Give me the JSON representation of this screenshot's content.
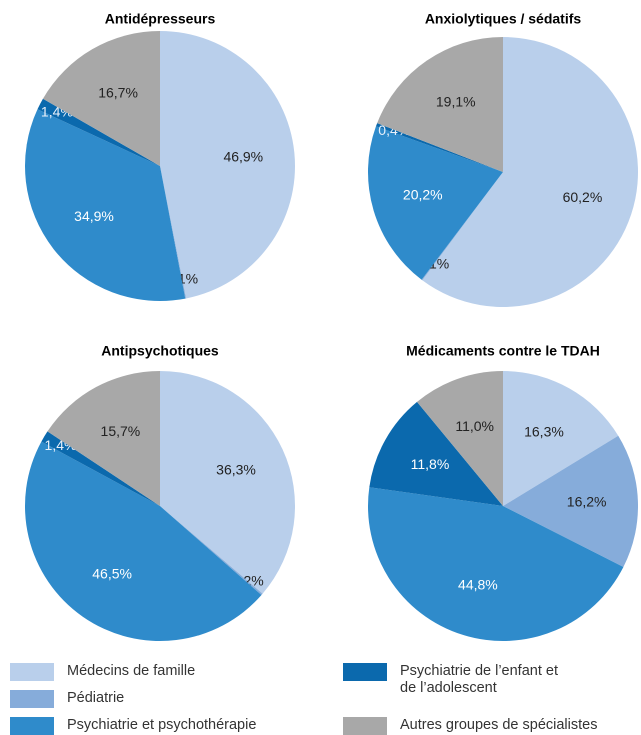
{
  "chart_data": [
    {
      "type": "pie",
      "title": "Antidépresseurs",
      "categories": [
        "Médecins de famille",
        "Pédiatrie",
        "Psychiatrie et psychothérapie",
        "Psychiatrie de l’enfant et de l’adolescent",
        "Autres groupes de spécialistes"
      ],
      "values": [
        46.9,
        0.1,
        34.9,
        1.4,
        16.7
      ],
      "value_labels": [
        "46,9%",
        "0,1%",
        "34,9%",
        "1,4%",
        "16,7%"
      ],
      "colors": [
        "#b9cfeb",
        "#86acda",
        "#2f8bcb",
        "#0b69ad",
        "#a8a8a8"
      ]
    },
    {
      "type": "pie",
      "title": "Anxiolytiques / sédatifs",
      "categories": [
        "Médecins de famille",
        "Pédiatrie",
        "Psychiatrie et psychothérapie",
        "Psychiatrie de l’enfant et de l’adolescent",
        "Autres groupes de spécialistes"
      ],
      "values": [
        60.2,
        0.1,
        20.2,
        0.4,
        19.1
      ],
      "value_labels": [
        "60,2%",
        "0,1%",
        "20,2%",
        "0,4%",
        "19,1%"
      ],
      "colors": [
        "#b9cfeb",
        "#86acda",
        "#2f8bcb",
        "#0b69ad",
        "#a8a8a8"
      ]
    },
    {
      "type": "pie",
      "title": "Antipsychotiques",
      "categories": [
        "Médecins de famille",
        "Pédiatrie",
        "Psychiatrie et psychothérapie",
        "Psychiatrie de l’enfant et de l’adolescent",
        "Autres groupes de spécialistes"
      ],
      "values": [
        36.3,
        0.2,
        46.5,
        1.4,
        15.7
      ],
      "value_labels": [
        "36,3%",
        "0,2%",
        "46,5%",
        "1,4%",
        "15,7%"
      ],
      "colors": [
        "#b9cfeb",
        "#86acda",
        "#2f8bcb",
        "#0b69ad",
        "#a8a8a8"
      ]
    },
    {
      "type": "pie",
      "title": "Médicaments contre le TDAH",
      "categories": [
        "Médecins de famille",
        "Pédiatrie",
        "Psychiatrie et psychothérapie",
        "Psychiatrie de l’enfant et de l’adolescent",
        "Autres groupes de spécialistes"
      ],
      "values": [
        16.3,
        16.2,
        44.8,
        11.8,
        11.0
      ],
      "value_labels": [
        "16,3%",
        "16,2%",
        "44,8%",
        "11,8%",
        "11,0%"
      ],
      "colors": [
        "#b9cfeb",
        "#86acda",
        "#2f8bcb",
        "#0b69ad",
        "#a8a8a8"
      ]
    }
  ]
}
